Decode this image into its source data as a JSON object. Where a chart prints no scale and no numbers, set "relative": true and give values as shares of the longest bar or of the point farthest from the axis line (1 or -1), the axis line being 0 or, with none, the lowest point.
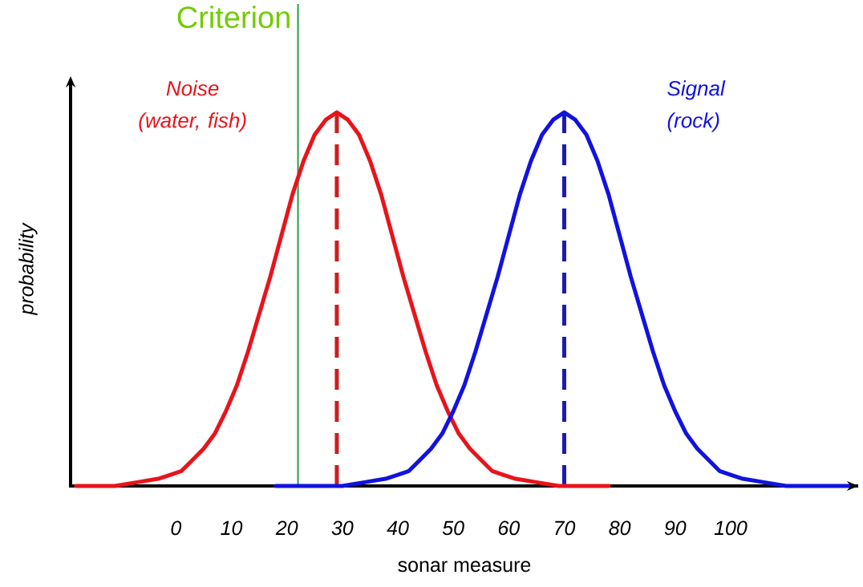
{
  "chart_data": {
    "type": "line",
    "relative": true,
    "xlabel": "sonar measure",
    "ylabel": "probability",
    "xlim": [
      -19,
      123
    ],
    "xticks": [
      0,
      10,
      20,
      30,
      40,
      50,
      60,
      70,
      80,
      90,
      100
    ],
    "legend": false,
    "marker": "none",
    "line_style": "solid",
    "grid": false,
    "series": [
      {
        "name": "Noise (water, fish)",
        "color": "#e8141b",
        "x": [
          -18,
          -15,
          -11,
          -7,
          -3,
          -1,
          1,
          3,
          5,
          7,
          9,
          11,
          13,
          15,
          17,
          19,
          21,
          23,
          25,
          27,
          29,
          31,
          33,
          35,
          37,
          39,
          41,
          43,
          45,
          47,
          49,
          51,
          53,
          55,
          57,
          59,
          61,
          65,
          69,
          73,
          78
        ],
        "values": [
          0.0,
          0.0,
          0.0,
          0.01,
          0.02,
          0.03,
          0.04,
          0.07,
          0.1,
          0.14,
          0.2,
          0.27,
          0.36,
          0.46,
          0.56,
          0.67,
          0.78,
          0.87,
          0.94,
          0.98,
          1.0,
          0.98,
          0.94,
          0.87,
          0.78,
          0.67,
          0.56,
          0.46,
          0.36,
          0.27,
          0.2,
          0.14,
          0.1,
          0.07,
          0.04,
          0.03,
          0.02,
          0.01,
          0.0,
          0.0,
          0.0
        ]
      },
      {
        "name": "Signal (rock)",
        "color": "#1212e0",
        "x": [
          18,
          22,
          26,
          30,
          34,
          38,
          40,
          42,
          44,
          46,
          48,
          50,
          52,
          54,
          56,
          58,
          60,
          62,
          64,
          66,
          68,
          70,
          72,
          74,
          76,
          78,
          80,
          82,
          84,
          86,
          88,
          90,
          92,
          94,
          96,
          98,
          100,
          102,
          106,
          110,
          114,
          118,
          122
        ],
        "values": [
          0.0,
          0.0,
          0.0,
          0.0,
          0.01,
          0.02,
          0.03,
          0.04,
          0.07,
          0.1,
          0.14,
          0.2,
          0.27,
          0.36,
          0.46,
          0.56,
          0.67,
          0.78,
          0.87,
          0.94,
          0.98,
          1.0,
          0.98,
          0.94,
          0.87,
          0.78,
          0.67,
          0.56,
          0.46,
          0.36,
          0.27,
          0.2,
          0.14,
          0.1,
          0.07,
          0.04,
          0.03,
          0.02,
          0.01,
          0.0,
          0.0,
          0.0,
          0.0
        ]
      }
    ],
    "ref_lines": [
      {
        "axis": "x",
        "value": 22,
        "label": "Criterion",
        "color": "#1f9e4a",
        "line_style": "solid"
      },
      {
        "axis": "x",
        "value": 29,
        "color": "#cc1f1f",
        "line_style": "dashed"
      },
      {
        "axis": "x",
        "value": 70,
        "color": "#1a1ab8",
        "line_style": "dashed"
      }
    ]
  }
}
